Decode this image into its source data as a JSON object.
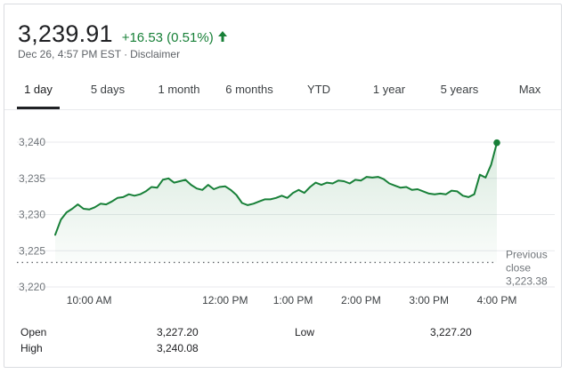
{
  "header": {
    "price": "3,239.91",
    "change": "+16.53 (0.51%)",
    "direction_icon": "arrow-up-icon",
    "timestamp": "Dec 26, 4:57 PM EST",
    "separator": "·",
    "disclaimer": "Disclaimer",
    "accent_color": "#188038"
  },
  "tabs": [
    {
      "label": "1 day",
      "active": true
    },
    {
      "label": "5 days",
      "active": false
    },
    {
      "label": "1 month",
      "active": false
    },
    {
      "label": "6 months",
      "active": false
    },
    {
      "label": "YTD",
      "active": false
    },
    {
      "label": "1 year",
      "active": false
    },
    {
      "label": "5 years",
      "active": false
    },
    {
      "label": "Max",
      "active": false
    }
  ],
  "chart_data": {
    "type": "area",
    "title": "",
    "xlabel": "",
    "ylabel": "",
    "ylim": [
      3220,
      3240
    ],
    "xlim": [
      "9:30 AM",
      "4:00 PM"
    ],
    "y_ticks": [
      {
        "value": 3240,
        "label": "3,240"
      },
      {
        "value": 3235,
        "label": "3,235"
      },
      {
        "value": 3230,
        "label": "3,230"
      },
      {
        "value": 3225,
        "label": "3,225"
      },
      {
        "value": 3220,
        "label": "3,220"
      }
    ],
    "x_ticks": [
      {
        "time": "10:00",
        "label": "10:00 AM"
      },
      {
        "time": "12:00",
        "label": "12:00 PM"
      },
      {
        "time": "13:00",
        "label": "1:00 PM"
      },
      {
        "time": "14:00",
        "label": "2:00 PM"
      },
      {
        "time": "15:00",
        "label": "3:00 PM"
      },
      {
        "time": "16:00",
        "label": "4:00 PM"
      }
    ],
    "grid": "horizontal",
    "line_color": "#188038",
    "previous_close": {
      "value": 3223.38,
      "label_lines": [
        "Previous",
        "close",
        "3,223.38"
      ]
    },
    "series": [
      {
        "x": [
          "9:30",
          "9:35",
          "9:40",
          "9:45",
          "9:50",
          "9:55",
          "10:00",
          "10:05",
          "10:10",
          "10:15",
          "10:20",
          "10:25",
          "10:30",
          "10:35",
          "10:40",
          "10:45",
          "10:50",
          "10:55",
          "11:00",
          "11:05",
          "11:10",
          "11:15",
          "11:20",
          "11:25",
          "11:30",
          "11:35",
          "11:40",
          "11:45",
          "11:50",
          "11:55",
          "12:00",
          "12:05",
          "12:10",
          "12:15",
          "12:20",
          "12:25",
          "12:30",
          "12:35",
          "12:40",
          "12:45",
          "12:50",
          "12:55",
          "13:00",
          "13:05",
          "13:10",
          "13:15",
          "13:20",
          "13:25",
          "13:30",
          "13:35",
          "13:40",
          "13:45",
          "13:50",
          "13:55",
          "14:00",
          "14:05",
          "14:10",
          "14:15",
          "14:20",
          "14:25",
          "14:30",
          "14:35",
          "14:40",
          "14:45",
          "14:50",
          "14:55",
          "15:00",
          "15:05",
          "15:10",
          "15:15",
          "15:20",
          "15:25",
          "15:30",
          "15:35",
          "15:40",
          "15:45",
          "15:50",
          "15:55",
          "16:00"
        ],
        "values": [
          3227.2,
          3229.3,
          3230.3,
          3230.8,
          3231.4,
          3230.8,
          3230.7,
          3231.0,
          3231.5,
          3231.4,
          3231.8,
          3232.3,
          3232.4,
          3232.8,
          3232.6,
          3232.8,
          3233.2,
          3233.8,
          3233.7,
          3234.8,
          3235.0,
          3234.4,
          3234.6,
          3234.8,
          3234.1,
          3233.6,
          3233.4,
          3234.1,
          3233.5,
          3233.8,
          3233.9,
          3233.4,
          3232.7,
          3231.6,
          3231.3,
          3231.5,
          3231.8,
          3232.1,
          3232.1,
          3232.3,
          3232.6,
          3232.3,
          3233.0,
          3233.4,
          3233.0,
          3233.8,
          3234.4,
          3234.1,
          3234.4,
          3234.3,
          3234.7,
          3234.6,
          3234.3,
          3234.8,
          3234.7,
          3235.2,
          3235.1,
          3235.2,
          3234.9,
          3234.3,
          3234.0,
          3233.7,
          3233.8,
          3233.4,
          3233.5,
          3233.2,
          3232.9,
          3232.8,
          3232.9,
          3232.8,
          3233.3,
          3233.2,
          3232.6,
          3232.4,
          3232.8,
          3235.5,
          3235.1,
          3236.9,
          3239.91
        ]
      }
    ]
  },
  "stats": [
    {
      "label": "Open",
      "value": "3,227.20"
    },
    {
      "label": "High",
      "value": "3,240.08"
    },
    {
      "label": "Low",
      "value": "3,227.20"
    }
  ]
}
